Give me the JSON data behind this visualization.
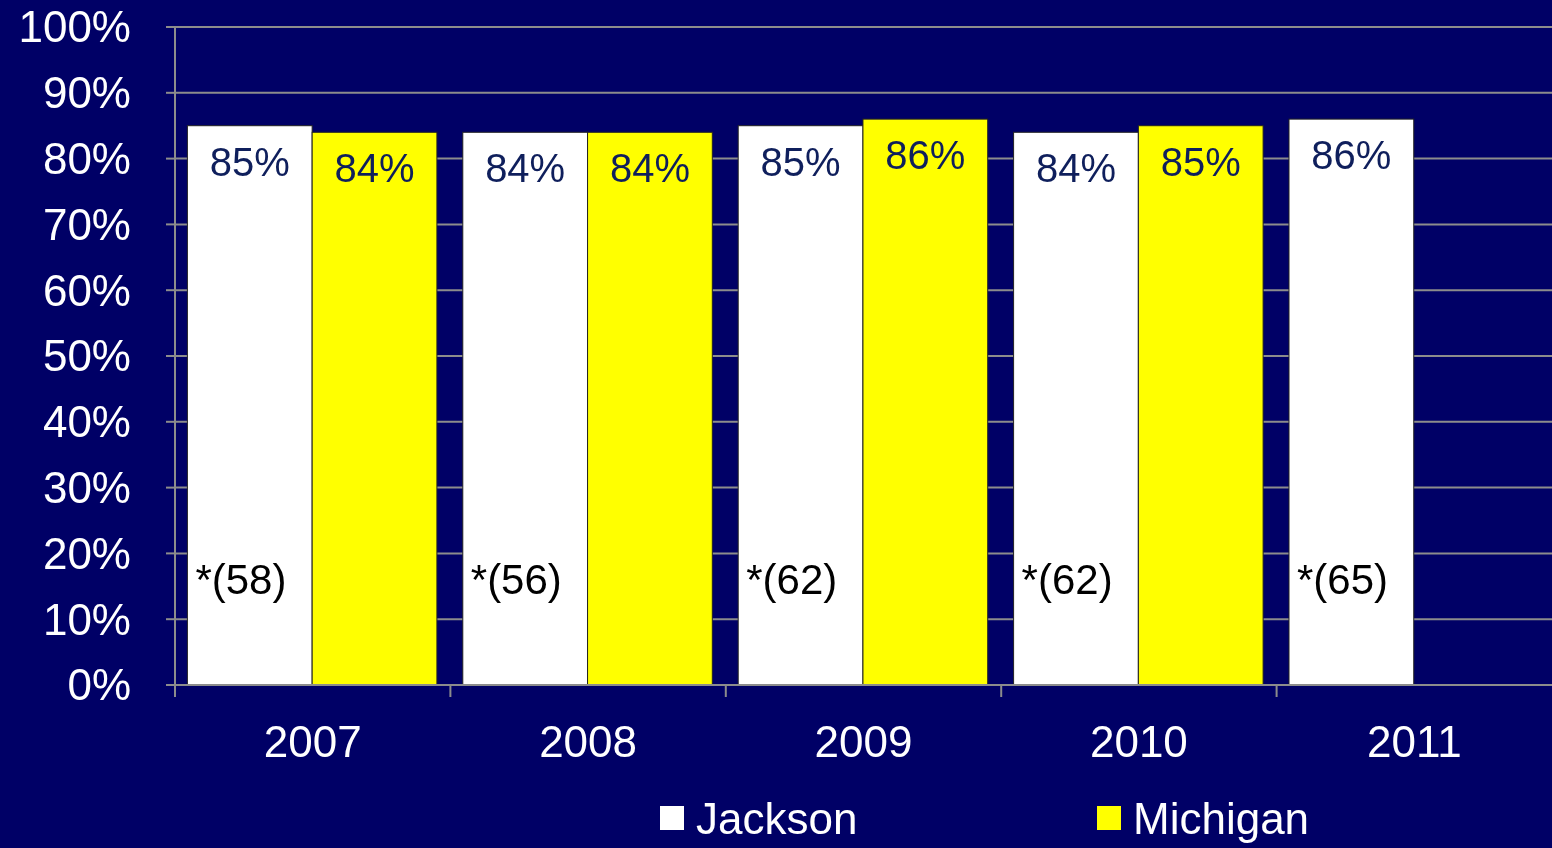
{
  "chart_data": {
    "type": "bar",
    "categories": [
      "2007",
      "2008",
      "2009",
      "2010",
      "2011"
    ],
    "series": [
      {
        "name": "Jackson",
        "color": "#ffffff",
        "values": [
          85,
          84,
          85,
          84,
          86
        ],
        "value_labels": [
          "85%",
          "84%",
          "85%",
          "84%",
          "86%"
        ]
      },
      {
        "name": "Michigan",
        "color": "#ffff00",
        "values": [
          84,
          84,
          86,
          85,
          null
        ],
        "value_labels": [
          "84%",
          "84%",
          "86%",
          "85%",
          null
        ]
      }
    ],
    "ylim": [
      0,
      100
    ],
    "yticks": [
      {
        "value": 0,
        "label": "0%"
      },
      {
        "value": 10,
        "label": "10%"
      },
      {
        "value": 20,
        "label": "20%"
      },
      {
        "value": 30,
        "label": "30%"
      },
      {
        "value": 40,
        "label": "40%"
      },
      {
        "value": 50,
        "label": "50%"
      },
      {
        "value": 60,
        "label": "60%"
      },
      {
        "value": 70,
        "label": "70%"
      },
      {
        "value": 80,
        "label": "80%"
      },
      {
        "value": 90,
        "label": "90%"
      },
      {
        "value": 100,
        "label": "100%"
      }
    ],
    "grid": "y",
    "legend": "bottom",
    "annotations": [
      {
        "text": "*(58)",
        "x": "2007",
        "y": 16
      },
      {
        "text": "*(56)",
        "x": "2008",
        "y": 16
      },
      {
        "text": "*(62)",
        "x": "2009",
        "y": 16
      },
      {
        "text": "*(62)",
        "x": "2010",
        "y": 16
      },
      {
        "text": "*(65)",
        "x": "2011",
        "y": 16
      }
    ]
  }
}
